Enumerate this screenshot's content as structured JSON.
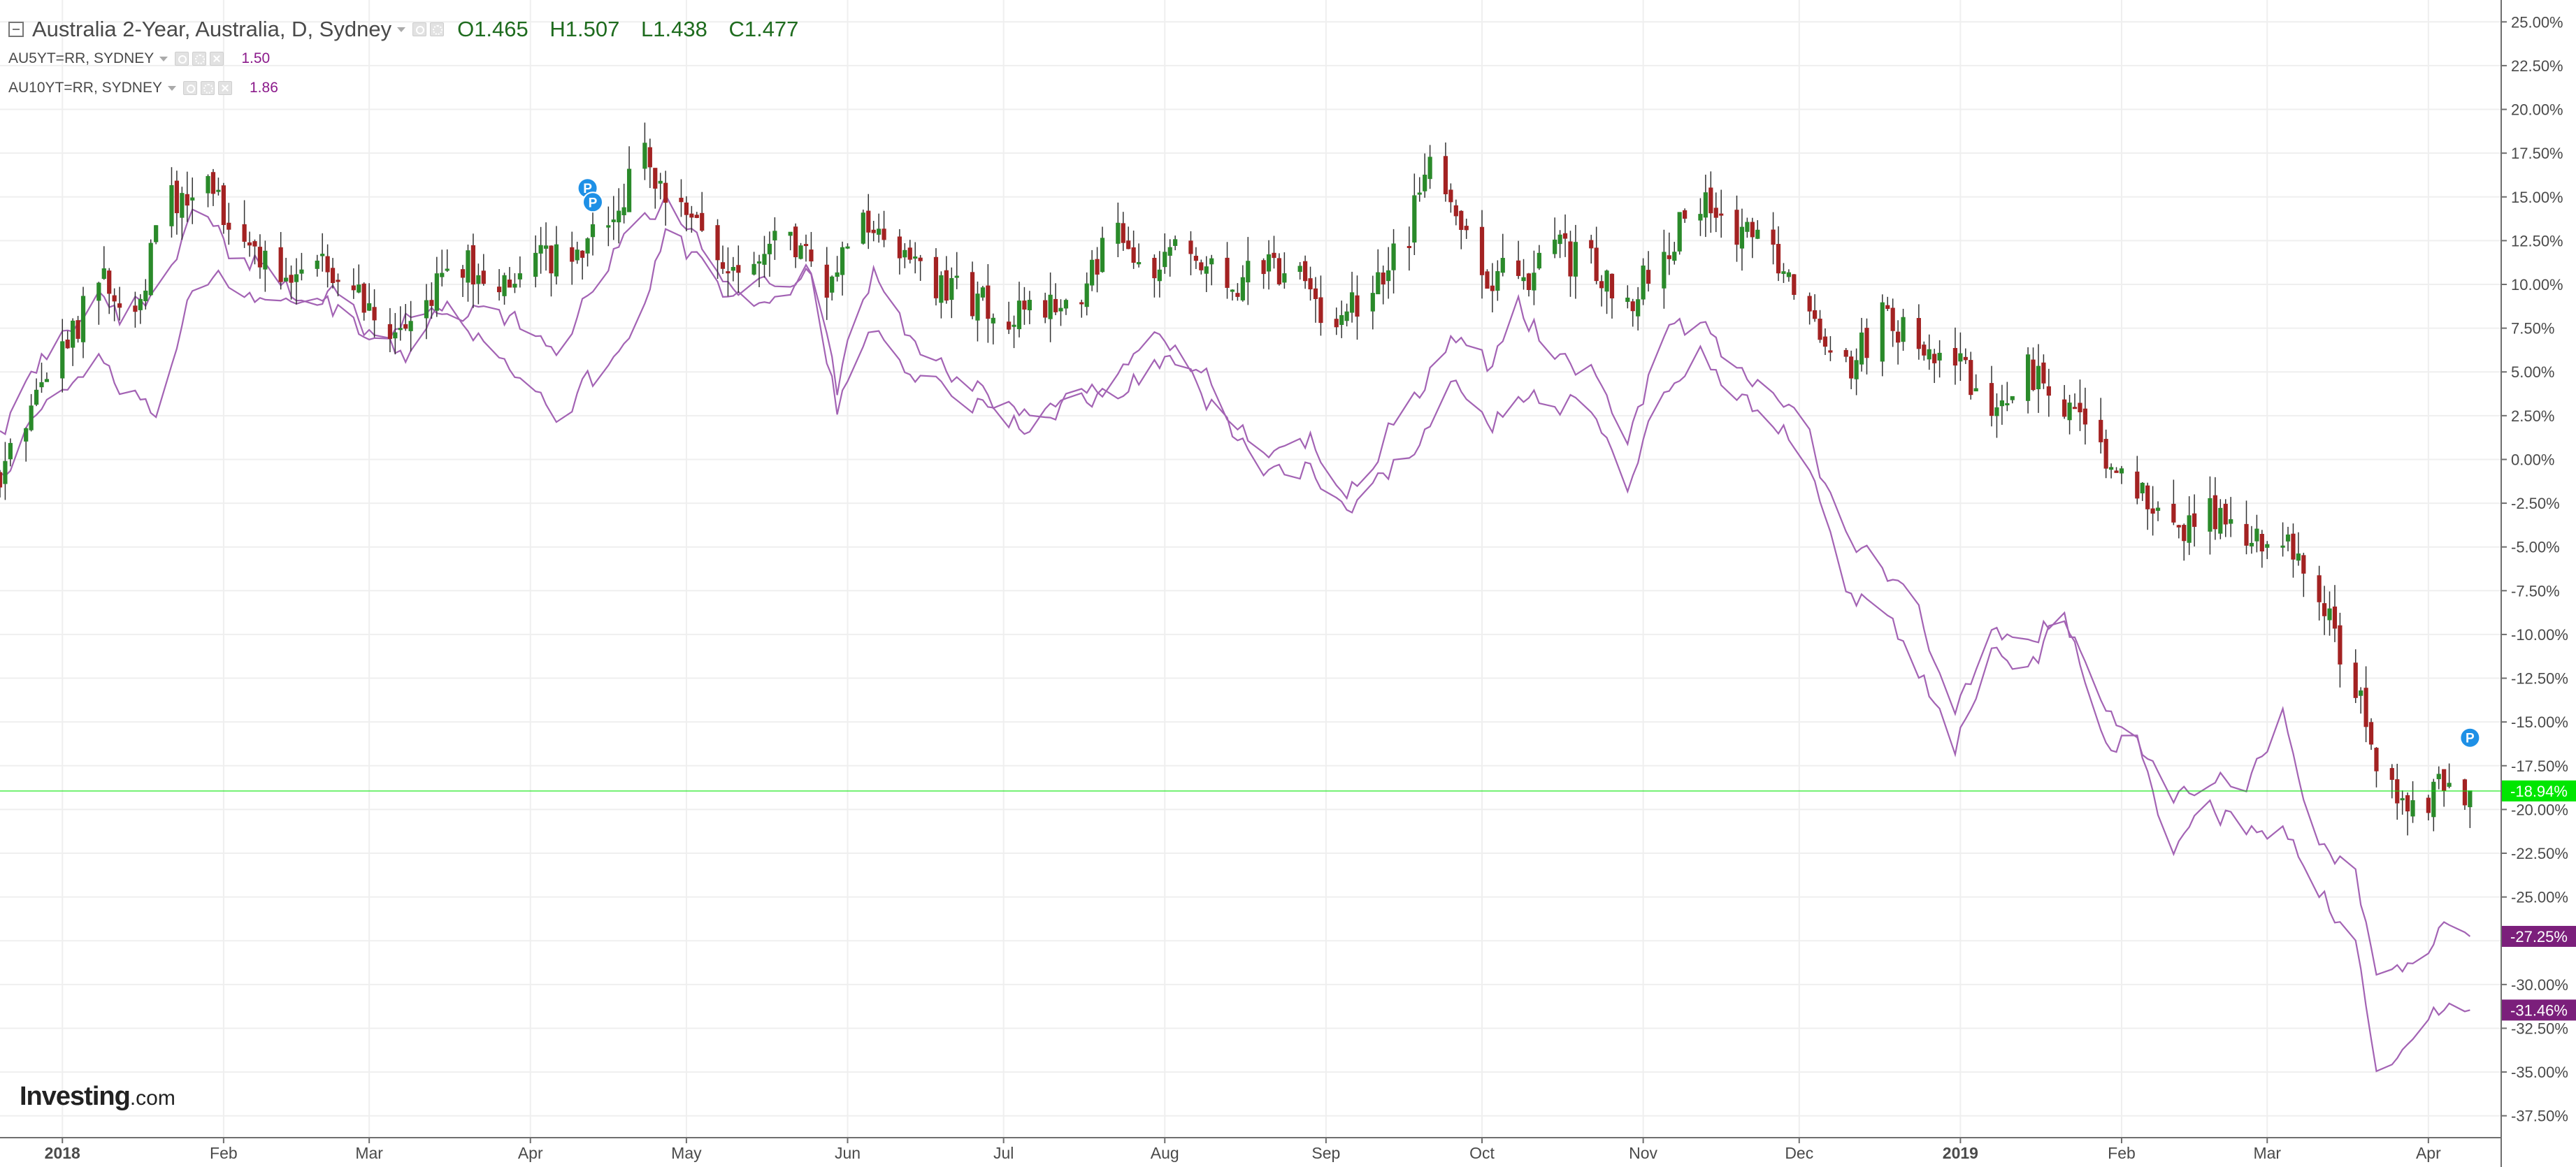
{
  "legend": {
    "title": "Australia 2-Year, Australia, D, Sydney",
    "open": "O1.465",
    "high": "H1.507",
    "low": "L1.438",
    "close": "C1.477",
    "series": [
      {
        "name": "AU5YT=RR, SYDNEY",
        "value": "1.50"
      },
      {
        "name": "AU10YT=RR, SYDNEY",
        "value": "1.86"
      }
    ]
  },
  "logo": {
    "main": "Investing",
    "suffix": ".com"
  },
  "colors": {
    "up": "#2a8a2a",
    "down": "#a32222",
    "line": "#a363b4",
    "current": "#00e600",
    "series_badge": "#7b1f7b",
    "grid": "#efefef"
  },
  "chart_data": {
    "type": "candlestick",
    "y_scale": "percent change",
    "ylim": [
      -38.75,
      26.25
    ],
    "y_ticks": [
      25,
      22.5,
      20,
      17.5,
      15,
      12.5,
      10,
      7.5,
      5,
      2.5,
      0,
      -2.5,
      -5,
      -7.5,
      -10,
      -12.5,
      -15,
      -17.5,
      -20,
      -22.5,
      -25,
      -27.5,
      -30,
      -32.5,
      -35,
      -37.5
    ],
    "y_tick_labels": [
      "25.00%",
      "22.50%",
      "20.00%",
      "17.50%",
      "15.00%",
      "12.50%",
      "10.00%",
      "7.50%",
      "5.00%",
      "2.50%",
      "0.00%",
      "-2.50%",
      "-5.00%",
      "-7.50%",
      "-10.00%",
      "-12.50%",
      "-15.00%",
      "-17.50%",
      "-20.00%",
      "-22.50%",
      "-25.00%",
      "-27.50%",
      "-30.00%",
      "-32.50%",
      "-35.00%",
      "-37.50%"
    ],
    "x_range": [
      "2017-12-20",
      "2019-04-15"
    ],
    "x_labels": [
      {
        "date": "2018-01-01",
        "label": "2018",
        "bold": true
      },
      {
        "date": "2018-02-01",
        "label": "Feb"
      },
      {
        "date": "2018-03-01",
        "label": "Mar"
      },
      {
        "date": "2018-04-01",
        "label": "Apr"
      },
      {
        "date": "2018-05-01",
        "label": "May"
      },
      {
        "date": "2018-06-01",
        "label": "Jun"
      },
      {
        "date": "2018-07-01",
        "label": "Jul"
      },
      {
        "date": "2018-08-01",
        "label": "Aug"
      },
      {
        "date": "2018-09-01",
        "label": "Sep"
      },
      {
        "date": "2018-10-01",
        "label": "Oct"
      },
      {
        "date": "2018-11-01",
        "label": "Nov"
      },
      {
        "date": "2018-12-01",
        "label": "Dec"
      },
      {
        "date": "2019-01-01",
        "label": "2019",
        "bold": true
      },
      {
        "date": "2019-02-01",
        "label": "Feb"
      },
      {
        "date": "2019-03-01",
        "label": "Mar"
      },
      {
        "date": "2019-04-01",
        "label": "Apr"
      }
    ],
    "main_series": {
      "name": "Australia 2-Year",
      "close_points": [
        [
          "2017-12-20",
          -1
        ],
        [
          "2017-12-29",
          5
        ],
        [
          "2018-01-08",
          10
        ],
        [
          "2018-01-15",
          9
        ],
        [
          "2018-01-22",
          15
        ],
        [
          "2018-01-29",
          15.5
        ],
        [
          "2018-02-05",
          13
        ],
        [
          "2018-02-12",
          10
        ],
        [
          "2018-02-19",
          11
        ],
        [
          "2018-02-26",
          10
        ],
        [
          "2018-03-05",
          8
        ],
        [
          "2018-03-12",
          9
        ],
        [
          "2018-03-19",
          11
        ],
        [
          "2018-03-26",
          10
        ],
        [
          "2018-04-02",
          12
        ],
        [
          "2018-04-09",
          11
        ],
        [
          "2018-04-16",
          14
        ],
        [
          "2018-04-23",
          17
        ],
        [
          "2018-04-30",
          14
        ],
        [
          "2018-05-07",
          12
        ],
        [
          "2018-05-14",
          11
        ],
        [
          "2018-05-21",
          13
        ],
        [
          "2018-05-28",
          9
        ],
        [
          "2018-06-04",
          14
        ],
        [
          "2018-06-11",
          12
        ],
        [
          "2018-06-18",
          10
        ],
        [
          "2018-06-25",
          9
        ],
        [
          "2018-07-02",
          8
        ],
        [
          "2018-07-09",
          9
        ],
        [
          "2018-07-16",
          10
        ],
        [
          "2018-07-23",
          13
        ],
        [
          "2018-07-30",
          11
        ],
        [
          "2018-08-06",
          12
        ],
        [
          "2018-08-13",
          10
        ],
        [
          "2018-08-20",
          11
        ],
        [
          "2018-08-27",
          10
        ],
        [
          "2018-09-03",
          8
        ],
        [
          "2018-09-10",
          10
        ],
        [
          "2018-09-17",
          13
        ],
        [
          "2018-09-21",
          17
        ],
        [
          "2018-09-25",
          14
        ],
        [
          "2018-10-01",
          11
        ],
        [
          "2018-10-08",
          10
        ],
        [
          "2018-10-15",
          12
        ],
        [
          "2018-10-22",
          11
        ],
        [
          "2018-10-29",
          9
        ],
        [
          "2018-11-05",
          12
        ],
        [
          "2018-11-12",
          15
        ],
        [
          "2018-11-19",
          13
        ],
        [
          "2018-11-26",
          12
        ],
        [
          "2018-12-03",
          9
        ],
        [
          "2018-12-10",
          5
        ],
        [
          "2018-12-17",
          8
        ],
        [
          "2018-12-24",
          7
        ],
        [
          "2018-12-31",
          6
        ],
        [
          "2019-01-07",
          3
        ],
        [
          "2019-01-14",
          5
        ],
        [
          "2019-01-21",
          3
        ],
        [
          "2019-01-28",
          1
        ],
        [
          "2019-02-04",
          -2
        ],
        [
          "2019-02-11",
          -4
        ],
        [
          "2019-02-18",
          -3
        ],
        [
          "2019-02-25",
          -5
        ],
        [
          "2019-03-04",
          -4
        ],
        [
          "2019-03-11",
          -8
        ],
        [
          "2019-03-18",
          -13
        ],
        [
          "2019-03-22",
          -17
        ],
        [
          "2019-03-29",
          -20
        ],
        [
          "2019-04-05",
          -18
        ],
        [
          "2019-04-09",
          -18.94
        ]
      ],
      "current_label": "-18.94%",
      "current_value": -18.94
    },
    "line_series": [
      {
        "name": "AU5YT=RR, SYDNEY",
        "points": [
          [
            "2017-12-20",
            1
          ],
          [
            "2017-12-29",
            6
          ],
          [
            "2018-01-08",
            10
          ],
          [
            "2018-01-12",
            8
          ],
          [
            "2018-01-19",
            10
          ],
          [
            "2018-01-26",
            14
          ],
          [
            "2018-02-02",
            12
          ],
          [
            "2018-02-09",
            11
          ],
          [
            "2018-02-16",
            9
          ],
          [
            "2018-02-23",
            10
          ],
          [
            "2018-03-02",
            7
          ],
          [
            "2018-03-09",
            8
          ],
          [
            "2018-03-16",
            9
          ],
          [
            "2018-03-23",
            8
          ],
          [
            "2018-03-30",
            7.5
          ],
          [
            "2018-04-06",
            6
          ],
          [
            "2018-04-13",
            10
          ],
          [
            "2018-04-20",
            13
          ],
          [
            "2018-04-27",
            15
          ],
          [
            "2018-05-04",
            12
          ],
          [
            "2018-05-11",
            10
          ],
          [
            "2018-05-18",
            9.5
          ],
          [
            "2018-05-25",
            11
          ],
          [
            "2018-05-30",
            4
          ],
          [
            "2018-06-06",
            11
          ],
          [
            "2018-06-13",
            7
          ],
          [
            "2018-06-20",
            5
          ],
          [
            "2018-06-27",
            4
          ],
          [
            "2018-07-04",
            2.5
          ],
          [
            "2018-07-11",
            3
          ],
          [
            "2018-07-18",
            3.5
          ],
          [
            "2018-07-25",
            5
          ],
          [
            "2018-08-01",
            7
          ],
          [
            "2018-08-08",
            5
          ],
          [
            "2018-08-15",
            2
          ],
          [
            "2018-08-22",
            0
          ],
          [
            "2018-08-29",
            1
          ],
          [
            "2018-09-05",
            -2
          ],
          [
            "2018-09-12",
            1
          ],
          [
            "2018-09-19",
            4
          ],
          [
            "2018-09-26",
            7
          ],
          [
            "2018-10-03",
            5
          ],
          [
            "2018-10-08",
            9
          ],
          [
            "2018-10-15",
            6
          ],
          [
            "2018-10-22",
            5
          ],
          [
            "2018-10-29",
            1
          ],
          [
            "2018-11-05",
            7
          ],
          [
            "2018-11-12",
            7.5
          ],
          [
            "2018-11-19",
            5
          ],
          [
            "2018-11-26",
            4
          ],
          [
            "2018-12-03",
            1
          ],
          [
            "2018-12-10",
            -4
          ],
          [
            "2018-12-17",
            -6
          ],
          [
            "2018-12-24",
            -9
          ],
          [
            "2018-12-31",
            -14
          ],
          [
            "2019-01-07",
            -10
          ],
          [
            "2019-01-14",
            -10
          ],
          [
            "2019-01-21",
            -9
          ],
          [
            "2019-01-28",
            -14
          ],
          [
            "2019-02-04",
            -16
          ],
          [
            "2019-02-11",
            -20
          ],
          [
            "2019-02-18",
            -18
          ],
          [
            "2019-02-25",
            -19
          ],
          [
            "2019-03-04",
            -14
          ],
          [
            "2019-03-11",
            -22
          ],
          [
            "2019-03-18",
            -24
          ],
          [
            "2019-03-22",
            -30
          ],
          [
            "2019-03-29",
            -29
          ],
          [
            "2019-04-05",
            -26
          ],
          [
            "2019-04-09",
            -27.25
          ]
        ],
        "current_label": "-27.25%",
        "current_value": -27.25
      },
      {
        "name": "AU10YT=RR, SYDNEY",
        "points": [
          [
            "2017-12-20",
            -1
          ],
          [
            "2017-12-29",
            4
          ],
          [
            "2018-01-08",
            6
          ],
          [
            "2018-01-12",
            4
          ],
          [
            "2018-01-19",
            3
          ],
          [
            "2018-01-26",
            10
          ],
          [
            "2018-02-02",
            10
          ],
          [
            "2018-02-09",
            9.5
          ],
          [
            "2018-02-16",
            9
          ],
          [
            "2018-02-23",
            8.5
          ],
          [
            "2018-03-02",
            7
          ],
          [
            "2018-03-09",
            6
          ],
          [
            "2018-03-16",
            9.5
          ],
          [
            "2018-03-23",
            7
          ],
          [
            "2018-03-30",
            5
          ],
          [
            "2018-04-06",
            3
          ],
          [
            "2018-04-13",
            4.5
          ],
          [
            "2018-04-20",
            7
          ],
          [
            "2018-04-27",
            13
          ],
          [
            "2018-05-04",
            11
          ],
          [
            "2018-05-11",
            9
          ],
          [
            "2018-05-18",
            9
          ],
          [
            "2018-05-25",
            11
          ],
          [
            "2018-05-30",
            3
          ],
          [
            "2018-06-06",
            7
          ],
          [
            "2018-06-13",
            5
          ],
          [
            "2018-06-20",
            4
          ],
          [
            "2018-06-27",
            3
          ],
          [
            "2018-07-04",
            2
          ],
          [
            "2018-07-11",
            3
          ],
          [
            "2018-07-18",
            3
          ],
          [
            "2018-07-25",
            4
          ],
          [
            "2018-08-01",
            6
          ],
          [
            "2018-08-08",
            4
          ],
          [
            "2018-08-15",
            1
          ],
          [
            "2018-08-22",
            -1
          ],
          [
            "2018-08-29",
            -0.5
          ],
          [
            "2018-09-05",
            -3
          ],
          [
            "2018-09-12",
            -1
          ],
          [
            "2018-09-19",
            1
          ],
          [
            "2018-09-26",
            5
          ],
          [
            "2018-10-03",
            2
          ],
          [
            "2018-10-08",
            4
          ],
          [
            "2018-10-15",
            3
          ],
          [
            "2018-10-22",
            3
          ],
          [
            "2018-10-29",
            -1.5
          ],
          [
            "2018-11-05",
            4
          ],
          [
            "2018-11-12",
            6
          ],
          [
            "2018-11-19",
            4
          ],
          [
            "2018-11-26",
            2
          ],
          [
            "2018-12-03",
            0
          ],
          [
            "2018-12-10",
            -7
          ],
          [
            "2018-12-17",
            -9
          ],
          [
            "2018-12-24",
            -12
          ],
          [
            "2018-12-31",
            -17
          ],
          [
            "2019-01-07",
            -10
          ],
          [
            "2019-01-14",
            -12
          ],
          [
            "2019-01-21",
            -9
          ],
          [
            "2019-01-28",
            -16
          ],
          [
            "2019-02-04",
            -16
          ],
          [
            "2019-02-11",
            -23
          ],
          [
            "2019-02-18",
            -20
          ],
          [
            "2019-02-25",
            -21
          ],
          [
            "2019-03-04",
            -21
          ],
          [
            "2019-03-11",
            -25
          ],
          [
            "2019-03-18",
            -27
          ],
          [
            "2019-03-22",
            -35
          ],
          [
            "2019-03-29",
            -33
          ],
          [
            "2019-04-05",
            -31
          ],
          [
            "2019-04-09",
            -31.46
          ]
        ],
        "current_label": "-31.46%",
        "current_value": -31.46
      }
    ],
    "markers": [
      {
        "label": "P",
        "date": "2018-04-12",
        "value": 15.5
      },
      {
        "label": "P",
        "date": "2018-04-13",
        "value": 14.7
      },
      {
        "label": "P",
        "date": "2019-04-09",
        "value": -15.9
      }
    ]
  }
}
